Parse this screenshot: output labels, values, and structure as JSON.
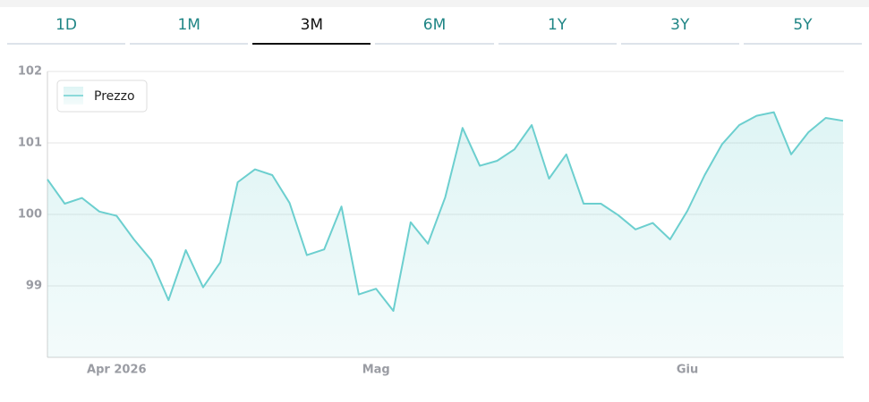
{
  "tabs": [
    "1D",
    "1M",
    "3M",
    "6M",
    "1Y",
    "3Y",
    "5Y"
  ],
  "active_tab": "3M",
  "chart_data": {
    "type": "area",
    "categories": [
      null,
      null,
      null,
      null,
      "Apr 2026",
      null,
      null,
      null,
      null,
      null,
      null,
      null,
      null,
      null,
      null,
      null,
      null,
      null,
      null,
      "Mag",
      null,
      null,
      null,
      null,
      null,
      null,
      null,
      null,
      null,
      null,
      null,
      null,
      null,
      null,
      null,
      null,
      null,
      "Giu",
      null,
      null,
      null,
      null,
      null,
      null,
      null,
      null,
      null
    ],
    "series": [
      {
        "name": "Prezzo",
        "color": "#6ccfcf",
        "values": [
          100.49,
          100.15,
          100.23,
          100.04,
          99.98,
          99.65,
          99.36,
          98.8,
          99.5,
          98.98,
          99.33,
          100.45,
          100.63,
          100.55,
          100.16,
          99.43,
          99.51,
          100.11,
          98.88,
          98.96,
          98.65,
          99.89,
          99.59,
          100.24,
          101.21,
          100.68,
          100.75,
          100.91,
          101.25,
          100.5,
          100.84,
          100.15,
          100.15,
          99.99,
          99.79,
          99.88,
          99.65,
          100.05,
          100.55,
          100.98,
          101.25,
          101.38,
          101.43,
          100.84,
          101.15,
          101.35,
          101.31
        ]
      }
    ],
    "ylim": [
      98,
      102
    ],
    "yticks": [
      99,
      100,
      101,
      102
    ],
    "grid": true,
    "legend": "top-left"
  }
}
